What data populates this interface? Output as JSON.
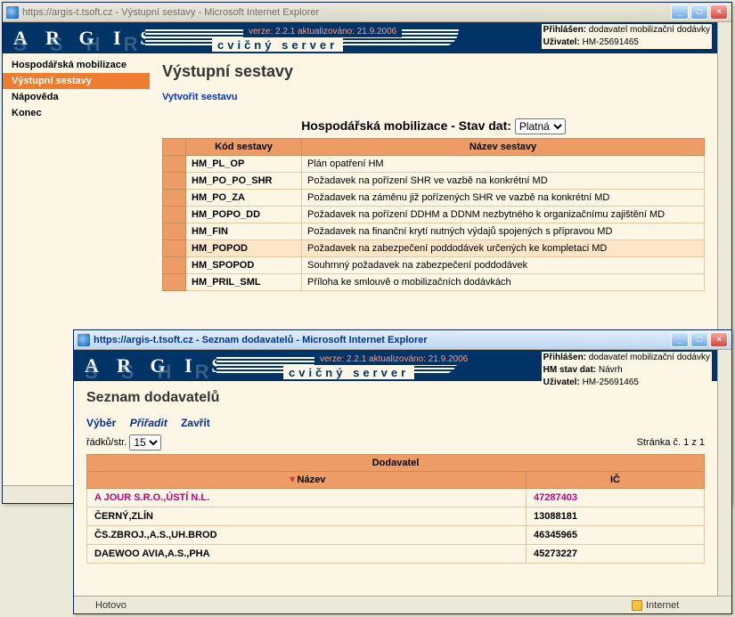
{
  "win1": {
    "title": "https://argis-t.tsoft.cz - Výstupní sestavy - Microsoft Internet Explorer",
    "banner": {
      "brand": "A R G I S",
      "sshr": "S  S  H  R",
      "version": "verze: 2.2.1 aktualizováno: 21.9.2006",
      "cvic": "cvičný server",
      "login_label": "Přihlášen:",
      "login_value": "dodavatel mobilizační dodávky",
      "user_label": "Uživatel:",
      "user_value": "HM-25691465"
    },
    "menu": [
      {
        "label": "Hospodářská mobilizace",
        "active": false
      },
      {
        "label": "Výstupní sestavy",
        "active": true
      },
      {
        "label": "Nápověda",
        "active": false
      },
      {
        "label": "Konec",
        "active": false
      }
    ],
    "page_title": "Výstupní sestavy",
    "create_link": "Vytvořit sestavu",
    "state_label": "Hospodářská mobilizace - Stav dat:",
    "state_value": "Platná",
    "col_code": "Kód sestavy",
    "col_name": "Název sestavy",
    "rows": [
      {
        "code": "HM_PL_OP",
        "name": "Plán opatření HM",
        "hl": false
      },
      {
        "code": "HM_PO_PO_SHR",
        "name": "Požadavek na pořízení SHR ve vazbě na konkrétní MD",
        "hl": false
      },
      {
        "code": "HM_PO_ZA",
        "name": "Požadavek na záměnu již pořízených SHR ve vazbě na konkrétní MD",
        "hl": false
      },
      {
        "code": "HM_POPO_DD",
        "name": "Požadavek na pořízení DDHM a DDNM nezbytného k organizačnímu zajištění MD",
        "hl": false
      },
      {
        "code": "HM_FIN",
        "name": "Požadavek na finanční krytí nutných výdajů spojených s přípravou MD",
        "hl": false
      },
      {
        "code": "HM_POPOD",
        "name": "Požadavek na zabezpečení poddodávek určených ke kompletaci MD",
        "hl": true
      },
      {
        "code": "HM_SPOPOD",
        "name": "Souhrnný požadavek na zabezpečení poddodávek",
        "hl": false
      },
      {
        "code": "HM_PRIL_SML",
        "name": "Příloha ke smlouvě o mobilizačních dodávkách",
        "hl": false
      }
    ],
    "status_zone": "Internet"
  },
  "win2": {
    "title": "https://argis-t.tsoft.cz - Seznam dodavatelů - Microsoft Internet Explorer",
    "banner": {
      "brand": "A R G I S",
      "sshr": "S  S  H  R",
      "version": "verze: 2.2.1 aktualizováno: 21.9.2006",
      "cvic": "cvičný server",
      "login_label": "Přihlášen:",
      "login_value": "dodavatel mobilizační dodávky",
      "state_label": "HM stav dat:",
      "state_value": "Návrh",
      "user_label": "Uživatel:",
      "user_value": "HM-25691465"
    },
    "page_title": "Seznam dodavatelů",
    "actions": {
      "vyber": "Výběr",
      "priradit": "Přiřadit",
      "zavrit": "Zavřít"
    },
    "rows_label": "řádků/str.",
    "rows_value": "15",
    "page_info": "Stránka č. 1 z 1",
    "th_group": "Dodavatel",
    "th_name": "Název",
    "th_ic": "IČ",
    "rows": [
      {
        "name": "A JOUR S.R.O.,ÚSTÍ N.L.",
        "ic": "47287403",
        "sel": true
      },
      {
        "name": "ČERNÝ,ZLÍN",
        "ic": "13088181",
        "sel": false
      },
      {
        "name": "ČS.ZBROJ.,A.S.,UH.BROD",
        "ic": "46345965",
        "sel": false
      },
      {
        "name": "DAEWOO AVIA,A.S.,PHA",
        "ic": "45273227",
        "sel": false
      }
    ],
    "status_text": "Hotovo",
    "status_zone": "Internet"
  }
}
